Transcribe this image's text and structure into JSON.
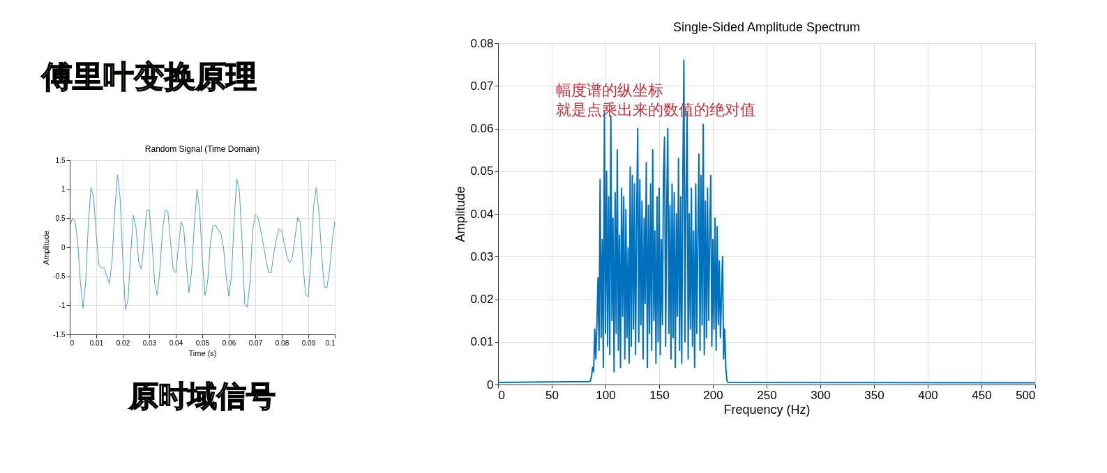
{
  "chart_data": [
    {
      "type": "line",
      "title": "Random Signal (Time Domain)",
      "xlabel": "Time (s)",
      "ylabel": "Amplitude",
      "annotations": [
        "傅里叶变换原理",
        "原时域信号"
      ],
      "x": [
        0,
        0.001,
        0.002,
        0.003,
        0.004,
        0.005,
        0.006,
        0.007,
        0.008,
        0.009,
        0.01,
        0.011,
        0.012,
        0.013,
        0.014,
        0.015,
        0.016,
        0.017,
        0.018,
        0.019,
        0.02,
        0.021,
        0.022,
        0.023,
        0.024,
        0.025,
        0.026,
        0.027,
        0.028,
        0.029,
        0.03,
        0.031,
        0.032,
        0.033,
        0.034,
        0.035,
        0.036,
        0.037,
        0.038,
        0.039,
        0.04,
        0.041,
        0.042,
        0.043,
        0.044,
        0.045,
        0.046,
        0.047,
        0.048,
        0.049,
        0.05,
        0.051,
        0.052,
        0.053,
        0.054,
        0.055,
        0.056,
        0.057,
        0.058,
        0.059,
        0.06,
        0.061,
        0.062,
        0.063,
        0.064,
        0.065,
        0.066,
        0.067,
        0.068,
        0.069,
        0.07,
        0.071,
        0.072,
        0.073,
        0.074,
        0.075,
        0.076,
        0.077,
        0.078,
        0.079,
        0.08,
        0.081,
        0.082,
        0.083,
        0.084,
        0.085,
        0.086,
        0.087,
        0.088,
        0.089,
        0.09,
        0.091,
        0.092,
        0.093,
        0.094,
        0.095,
        0.096,
        0.097,
        0.098,
        0.099,
        0.1
      ],
      "series": [
        {
          "color": "#4aa3c8",
          "values": [
            0.35,
            0.5,
            0.44,
            0.1,
            -0.6,
            -1.05,
            -0.6,
            0.4,
            1.03,
            0.87,
            0.2,
            -0.3,
            -0.36,
            -0.35,
            -0.5,
            -0.63,
            -0.2,
            0.65,
            1.25,
            0.85,
            -0.2,
            -1.07,
            -0.9,
            -0.1,
            0.55,
            0.33,
            -0.25,
            -0.38,
            0.1,
            0.63,
            0.64,
            0.1,
            -0.6,
            -0.83,
            -0.4,
            0.3,
            0.64,
            0.62,
            0.1,
            -0.38,
            -0.44,
            0.0,
            0.44,
            0.33,
            -0.3,
            -0.78,
            -0.4,
            0.4,
            0.99,
            0.65,
            -0.2,
            -0.83,
            -0.6,
            0.05,
            0.37,
            0.38,
            0.3,
            0.24,
            0.0,
            -0.5,
            -0.84,
            -0.5,
            0.45,
            1.18,
            0.98,
            0.1,
            -0.97,
            -1.03,
            -0.6,
            0.3,
            0.56,
            0.51,
            0.3,
            0.05,
            -0.2,
            -0.43,
            -0.44,
            -0.1,
            0.15,
            0.32,
            0.27,
            0.05,
            -0.17,
            -0.27,
            -0.17,
            0.18,
            0.51,
            0.43,
            -0.3,
            -0.82,
            -0.85,
            -0.2,
            0.7,
            1.03,
            0.6,
            -0.1,
            -0.68,
            -0.7,
            -0.4,
            0.1,
            0.45
          ]
        }
      ],
      "xlim": [
        0,
        0.1
      ],
      "ylim": [
        -1.5,
        1.5
      ],
      "xticks": [
        0,
        0.01,
        0.02,
        0.03,
        0.04,
        0.05,
        0.06,
        0.07,
        0.08,
        0.09,
        0.1
      ],
      "yticks": [
        -1.5,
        -1,
        -0.5,
        0,
        0.5,
        1,
        1.5
      ],
      "grid": true
    },
    {
      "type": "line",
      "title": "Single-Sided Amplitude Spectrum",
      "xlabel": "Frequency (Hz)",
      "ylabel": "Amplitude",
      "annotations": [
        "幅度谱的纵坐标",
        "就是点乘出来的数值的绝对值"
      ],
      "x": [
        0,
        85,
        86,
        87,
        88,
        89,
        90,
        91,
        92,
        93,
        94,
        95,
        96,
        97,
        98,
        99,
        100,
        101,
        102,
        103,
        104,
        105,
        106,
        107,
        108,
        109,
        110,
        111,
        112,
        113,
        114,
        115,
        116,
        117,
        118,
        119,
        120,
        121,
        122,
        123,
        124,
        125,
        126,
        127,
        128,
        129,
        130,
        131,
        132,
        133,
        134,
        135,
        136,
        137,
        138,
        139,
        140,
        141,
        142,
        143,
        144,
        145,
        146,
        147,
        148,
        149,
        150,
        151,
        152,
        153,
        154,
        155,
        156,
        157,
        158,
        159,
        160,
        161,
        162,
        163,
        164,
        165,
        166,
        167,
        168,
        169,
        170,
        171,
        172,
        173,
        174,
        175,
        176,
        177,
        178,
        179,
        180,
        181,
        182,
        183,
        184,
        185,
        186,
        187,
        188,
        189,
        190,
        191,
        192,
        193,
        194,
        195,
        196,
        197,
        198,
        199,
        200,
        201,
        202,
        203,
        204,
        205,
        206,
        207,
        208,
        209,
        210,
        211,
        212,
        213,
        214,
        500
      ],
      "series": [
        {
          "color": "#0072bd",
          "values": [
            0.0005,
            0.0007,
            0.0008,
            0.002,
            0.004,
            0.003,
            0.013,
            0.006,
            0.014,
            0.025,
            0.008,
            0.048,
            0.011,
            0.034,
            0.004,
            0.064,
            0.012,
            0.05,
            0.009,
            0.044,
            0.007,
            0.063,
            0.015,
            0.039,
            0.003,
            0.045,
            0.012,
            0.055,
            0.008,
            0.035,
            0.004,
            0.046,
            0.016,
            0.044,
            0.006,
            0.041,
            0.011,
            0.032,
            0.005,
            0.051,
            0.009,
            0.049,
            0.013,
            0.047,
            0.007,
            0.038,
            0.06,
            0.01,
            0.048,
            0.014,
            0.043,
            0.006,
            0.039,
            0.019,
            0.052,
            0.004,
            0.042,
            0.012,
            0.047,
            0.008,
            0.055,
            0.015,
            0.036,
            0.005,
            0.044,
            0.01,
            0.046,
            0.007,
            0.034,
            0.014,
            0.049,
            0.058,
            0.009,
            0.041,
            0.06,
            0.012,
            0.042,
            0.006,
            0.047,
            0.011,
            0.045,
            0.004,
            0.04,
            0.016,
            0.053,
            0.008,
            0.044,
            0.005,
            0.048,
            0.076,
            0.01,
            0.045,
            0.064,
            0.006,
            0.04,
            0.013,
            0.046,
            0.009,
            0.036,
            0.004,
            0.047,
            0.012,
            0.034,
            0.054,
            0.008,
            0.049,
            0.014,
            0.061,
            0.007,
            0.043,
            0.011,
            0.046,
            0.015,
            0.034,
            0.049,
            0.009,
            0.034,
            0.013,
            0.039,
            0.008,
            0.037,
            0.014,
            0.029,
            0.011,
            0.021,
            0.03,
            0.006,
            0.013,
            0.004,
            0.001,
            0.0005,
            0.0004
          ]
        }
      ],
      "xlim": [
        0,
        500
      ],
      "ylim": [
        0,
        0.08
      ],
      "xticks": [
        0,
        50,
        100,
        150,
        200,
        250,
        300,
        350,
        400,
        450,
        500
      ],
      "yticks": [
        0,
        0.01,
        0.02,
        0.03,
        0.04,
        0.05,
        0.06,
        0.07,
        0.08
      ],
      "grid": true
    }
  ]
}
